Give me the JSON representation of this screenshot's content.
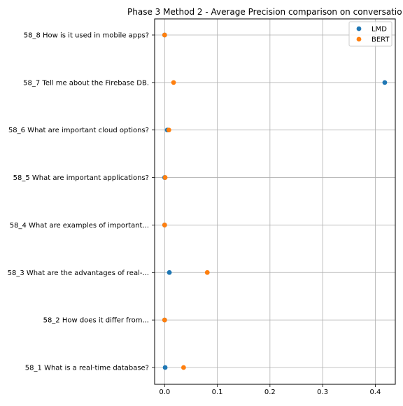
{
  "chart_data": {
    "type": "scatter",
    "title": "Phase 3 Method 2 - Average Precision comparison on conversatio",
    "xlabel": "",
    "ylabel": "",
    "categories": [
      "58_1 What is a real-time database?",
      "58_2 How does it differ from...",
      "58_3 What are the advantages of real-...",
      "58_4 What are examples of important...",
      "58_5 What are important applications?",
      "58_6 What are important cloud options?",
      "58_7 Tell me about the Firebase DB.",
      "58_8 How is it used in mobile apps?"
    ],
    "series": [
      {
        "name": "LMD",
        "color": "#1f77b4",
        "values": [
          0.001,
          0.0,
          0.009,
          0.0,
          0.0,
          0.005,
          0.418,
          0.0
        ]
      },
      {
        "name": "BERT",
        "color": "#ff7f0e",
        "values": [
          0.036,
          0.0,
          0.081,
          0.0,
          0.001,
          0.008,
          0.017,
          0.0
        ]
      }
    ],
    "xlim": [
      -0.019,
      0.438
    ],
    "xticks": [
      0.0,
      0.1,
      0.2,
      0.3,
      0.4
    ],
    "xtick_labels": [
      "0.0",
      "0.1",
      "0.2",
      "0.3",
      "0.4"
    ],
    "grid": true,
    "legend_position": "top-right"
  }
}
